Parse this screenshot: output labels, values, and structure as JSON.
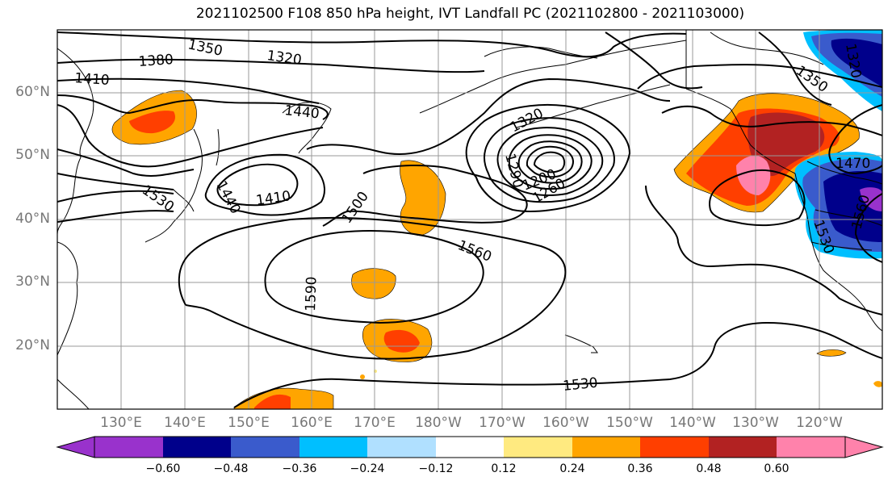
{
  "title": "2021102500 F108 850 hPa height, IVT Landfall PC (2021102800 - 2021103000)",
  "map": {
    "lat_labels": [
      "20°N",
      "30°N",
      "40°N",
      "50°N",
      "60°N"
    ],
    "lon_labels": [
      "130°E",
      "140°E",
      "150°E",
      "160°E",
      "170°E",
      "180°W",
      "170°W",
      "160°W",
      "150°W",
      "140°W",
      "130°W",
      "120°W"
    ],
    "contour_labels": [
      "1320",
      "1350",
      "1380",
      "1410",
      "1440",
      "1410",
      "1440",
      "1530",
      "1500",
      "1560",
      "1590",
      "1530",
      "1320",
      "1290",
      "1200",
      "1260",
      "1350",
      "1320",
      "1470",
      "1560",
      "1530"
    ],
    "land_color": "#000000",
    "grid_color": "#999999"
  },
  "colorbar": {
    "ticks": [
      "−0.60",
      "−0.48",
      "−0.36",
      "−0.24",
      "−0.12",
      "0.12",
      "0.24",
      "0.36",
      "0.48",
      "0.60"
    ],
    "colors": [
      "#9932cc",
      "#00008b",
      "#3a5bcc",
      "#00bfff",
      "#b0e0ff",
      "#ffffff",
      "#ffea80",
      "#ffa500",
      "#ff3f00",
      "#b22222",
      "#ff82ab"
    ]
  }
}
